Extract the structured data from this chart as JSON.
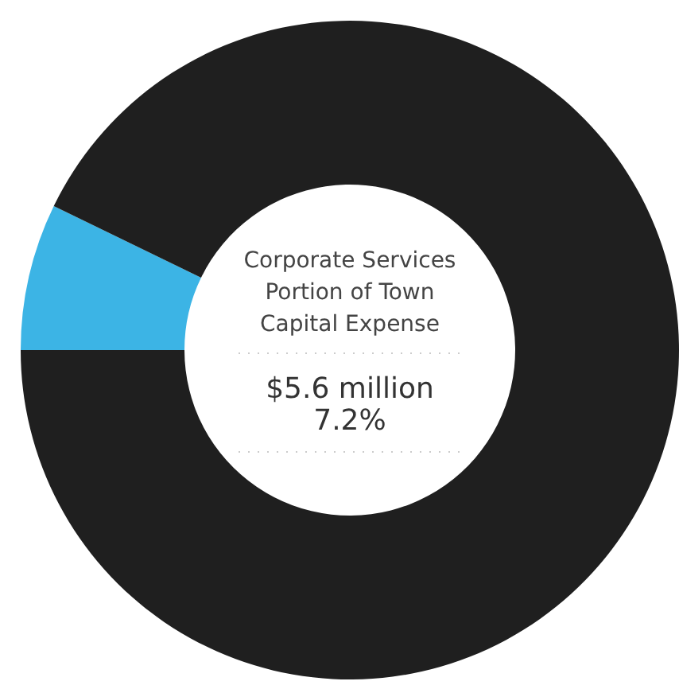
{
  "chart_data": {
    "type": "donut",
    "title": "Corporate Services\nPortion of Town\nCapital Expense",
    "categories": [
      null,
      null
    ],
    "values": [
      7.2,
      92.8
    ],
    "colors": [
      "#3cb4e5",
      "#1f1f1f"
    ],
    "annotations": [
      "$5.6 million",
      "7.2%"
    ]
  }
}
